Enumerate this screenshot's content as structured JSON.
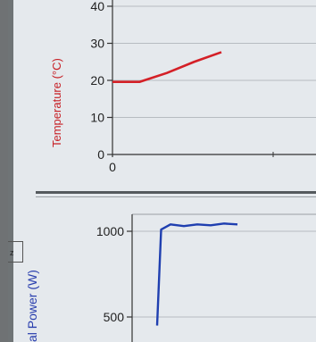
{
  "chart_data": [
    {
      "type": "line",
      "ylabel": "Temperature (°C)",
      "xlabel": "",
      "y_ticks": [
        0,
        10,
        20,
        30,
        40
      ],
      "x_ticks": [
        0
      ],
      "ylim": [
        0,
        40
      ],
      "grid": true,
      "color": "#d42027",
      "series": [
        {
          "x": [
            0,
            1,
            2,
            3,
            4
          ],
          "y": [
            19.6,
            19.6,
            22,
            25,
            27.6
          ]
        }
      ]
    },
    {
      "type": "line",
      "ylabel": "al Power (W)",
      "xlabel": "",
      "y_ticks": [
        500,
        1000
      ],
      "ylim": [
        450,
        1100
      ],
      "grid": true,
      "color": "#1f3fb0",
      "series": [
        {
          "x": [
            0,
            0.3,
            1,
            2,
            3,
            4,
            5,
            6
          ],
          "y": [
            450,
            1010,
            1040,
            1030,
            1040,
            1035,
            1045,
            1040
          ]
        }
      ]
    }
  ],
  "side_marker": "z"
}
